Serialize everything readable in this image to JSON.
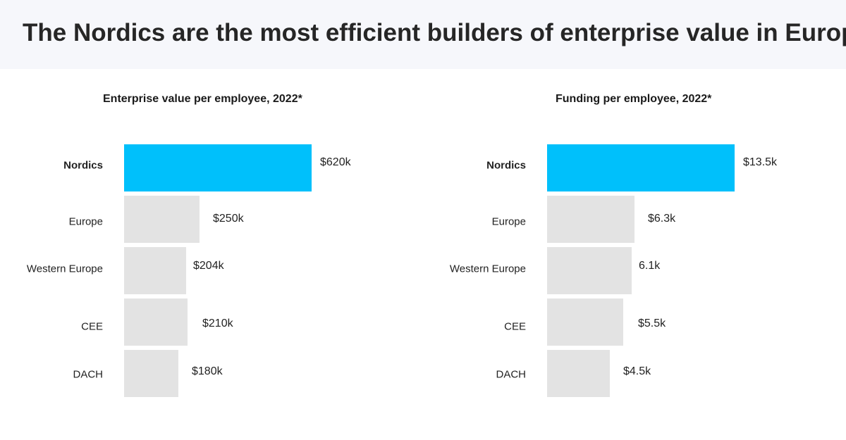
{
  "headline": "The Nordics are the most efficient builders of enterprise value in Europe.",
  "colors": {
    "highlight": "#00c0fb",
    "bar": "#e3e3e3",
    "header_background": "#f6f7fb"
  },
  "chart_data": [
    {
      "type": "bar",
      "orientation": "horizontal",
      "title": "Enterprise value per employee, 2022*",
      "categories": [
        "Nordics",
        "Europe",
        "Western Europe",
        "CEE",
        "DACH"
      ],
      "values": [
        620,
        250,
        204,
        210,
        180
      ],
      "unit": "thousand USD",
      "value_labels": [
        "$620k",
        "$250k",
        "$204k",
        "$210k",
        "$180k"
      ],
      "highlighted_category": "Nordics",
      "xlim": [
        0,
        620
      ],
      "grid": false,
      "legend": "none"
    },
    {
      "type": "bar",
      "orientation": "horizontal",
      "title": "Funding per employee, 2022*",
      "categories": [
        "Nordics",
        "Europe",
        "Western Europe",
        "CEE",
        "DACH"
      ],
      "values": [
        13.5,
        6.3,
        6.1,
        5.5,
        4.5
      ],
      "unit": "thousand USD",
      "value_labels": [
        "$13.5k",
        "$6.3k",
        "6.1k",
        "$5.5k",
        "$4.5k"
      ],
      "highlighted_category": "Nordics",
      "xlim": [
        0,
        13.5
      ],
      "grid": false,
      "legend": "none"
    }
  ]
}
